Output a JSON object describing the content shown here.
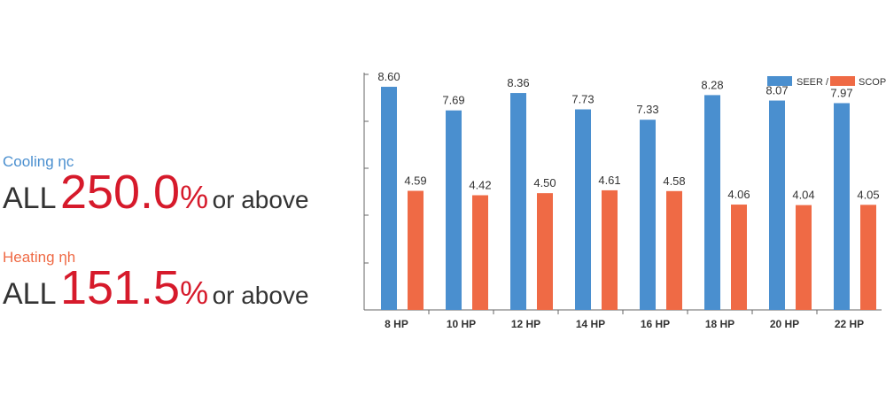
{
  "summary": {
    "cooling": {
      "label": "Cooling ηc",
      "prefix": "ALL",
      "value": "250.0",
      "percent": "%",
      "suffix": "or above"
    },
    "heating": {
      "label": "Heating ηh",
      "prefix": "ALL",
      "value": "151.5",
      "percent": "%",
      "suffix": "or above"
    }
  },
  "colors": {
    "cooling_label": "#4a8fcf",
    "heating_label": "#ef6a45",
    "highlight": "#d61a2b",
    "seer": "#4a8fcf",
    "scop": "#ef6a45",
    "axis": "#666666",
    "text": "#333333"
  },
  "chart_data": {
    "type": "bar",
    "categories": [
      "8 HP",
      "10 HP",
      "12 HP",
      "14 HP",
      "16 HP",
      "18 HP",
      "20 HP",
      "22 HP"
    ],
    "series": [
      {
        "name": "SEER /",
        "values": [
          8.6,
          7.69,
          8.36,
          7.73,
          7.33,
          8.28,
          8.07,
          7.97
        ]
      },
      {
        "name": "SCOP",
        "values": [
          4.59,
          4.42,
          4.5,
          4.61,
          4.58,
          4.06,
          4.04,
          4.05
        ]
      }
    ],
    "ylim": [
      0,
      10
    ],
    "legend": "top-right",
    "grid": false
  }
}
